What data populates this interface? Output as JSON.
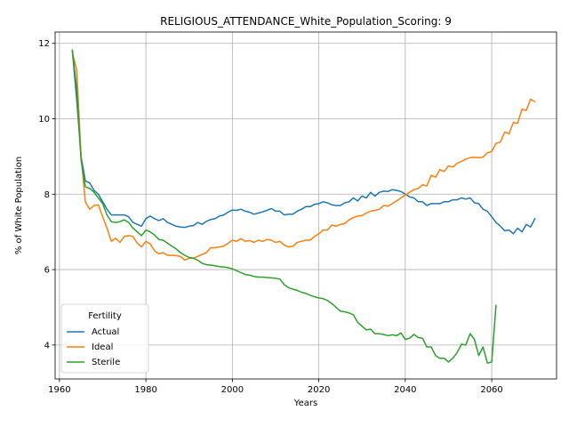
{
  "chart_data": {
    "type": "line",
    "title": "RELIGIOUS_ATTENDANCE_White_Population_Scoring: 9",
    "xlabel": "Years",
    "ylabel": "% of White Population",
    "xlim": [
      1959,
      2075
    ],
    "ylim": [
      3.1,
      12.3
    ],
    "xticks": [
      1960,
      1980,
      2000,
      2020,
      2040,
      2060
    ],
    "yticks": [
      4,
      6,
      8,
      10,
      12
    ],
    "grid": true,
    "legend": {
      "title": "Fertility",
      "position": "lower-left"
    },
    "series": [
      {
        "name": "Actual",
        "color": "#1f77b4",
        "points": [
          [
            1963,
            11.8
          ],
          [
            1964,
            10.5
          ],
          [
            1965,
            9.0
          ],
          [
            1966,
            8.35
          ],
          [
            1967,
            8.3
          ],
          [
            1968,
            8.1
          ],
          [
            1969,
            8.0
          ],
          [
            1970,
            7.8
          ],
          [
            1971,
            7.6
          ],
          [
            1972,
            7.45
          ],
          [
            1973,
            7.45
          ],
          [
            1974,
            7.45
          ],
          [
            1975,
            7.45
          ],
          [
            1976,
            7.4
          ],
          [
            1977,
            7.25
          ],
          [
            1978,
            7.2
          ],
          [
            1979,
            7.15
          ],
          [
            1980,
            7.35
          ],
          [
            1981,
            7.42
          ],
          [
            1982,
            7.35
          ],
          [
            1983,
            7.3
          ],
          [
            1984,
            7.35
          ],
          [
            1985,
            7.25
          ],
          [
            1986,
            7.2
          ],
          [
            1987,
            7.15
          ],
          [
            1988,
            7.13
          ],
          [
            1989,
            7.12
          ],
          [
            1990,
            7.15
          ],
          [
            1991,
            7.17
          ],
          [
            1992,
            7.25
          ],
          [
            1993,
            7.2
          ],
          [
            1994,
            7.28
          ],
          [
            1995,
            7.33
          ],
          [
            1996,
            7.35
          ],
          [
            1997,
            7.42
          ],
          [
            1998,
            7.45
          ],
          [
            1999,
            7.52
          ],
          [
            2000,
            7.58
          ],
          [
            2001,
            7.57
          ],
          [
            2002,
            7.6
          ],
          [
            2003,
            7.55
          ],
          [
            2004,
            7.52
          ],
          [
            2005,
            7.47
          ],
          [
            2006,
            7.5
          ],
          [
            2007,
            7.53
          ],
          [
            2008,
            7.57
          ],
          [
            2009,
            7.62
          ],
          [
            2010,
            7.55
          ],
          [
            2011,
            7.55
          ],
          [
            2012,
            7.45
          ],
          [
            2013,
            7.47
          ],
          [
            2014,
            7.47
          ],
          [
            2015,
            7.55
          ],
          [
            2016,
            7.6
          ],
          [
            2017,
            7.67
          ],
          [
            2018,
            7.67
          ],
          [
            2019,
            7.73
          ],
          [
            2020,
            7.75
          ],
          [
            2021,
            7.8
          ],
          [
            2022,
            7.77
          ],
          [
            2023,
            7.72
          ],
          [
            2024,
            7.7
          ],
          [
            2025,
            7.7
          ],
          [
            2026,
            7.77
          ],
          [
            2027,
            7.8
          ],
          [
            2028,
            7.9
          ],
          [
            2029,
            7.82
          ],
          [
            2030,
            7.95
          ],
          [
            2031,
            7.9
          ],
          [
            2032,
            8.05
          ],
          [
            2033,
            7.95
          ],
          [
            2034,
            8.05
          ],
          [
            2035,
            8.08
          ],
          [
            2036,
            8.07
          ],
          [
            2037,
            8.12
          ],
          [
            2038,
            8.1
          ],
          [
            2039,
            8.07
          ],
          [
            2040,
            8.0
          ],
          [
            2041,
            7.93
          ],
          [
            2042,
            7.9
          ],
          [
            2043,
            7.8
          ],
          [
            2044,
            7.8
          ],
          [
            2045,
            7.7
          ],
          [
            2046,
            7.75
          ],
          [
            2047,
            7.75
          ],
          [
            2048,
            7.75
          ],
          [
            2049,
            7.8
          ],
          [
            2050,
            7.8
          ],
          [
            2051,
            7.85
          ],
          [
            2052,
            7.85
          ],
          [
            2053,
            7.9
          ],
          [
            2054,
            7.87
          ],
          [
            2055,
            7.9
          ],
          [
            2056,
            7.77
          ],
          [
            2057,
            7.75
          ],
          [
            2058,
            7.6
          ],
          [
            2059,
            7.55
          ],
          [
            2060,
            7.4
          ],
          [
            2061,
            7.25
          ],
          [
            2062,
            7.15
          ],
          [
            2063,
            7.03
          ],
          [
            2064,
            7.05
          ],
          [
            2065,
            6.95
          ],
          [
            2066,
            7.1
          ],
          [
            2067,
            7.0
          ],
          [
            2068,
            7.2
          ],
          [
            2069,
            7.13
          ],
          [
            2070,
            7.35
          ]
        ]
      },
      {
        "name": "Ideal",
        "color": "#ff7f0e",
        "points": [
          [
            1963,
            11.75
          ],
          [
            1964,
            11.3
          ],
          [
            1965,
            9.0
          ],
          [
            1966,
            7.8
          ],
          [
            1967,
            7.6
          ],
          [
            1968,
            7.7
          ],
          [
            1969,
            7.72
          ],
          [
            1970,
            7.4
          ],
          [
            1971,
            7.1
          ],
          [
            1972,
            6.75
          ],
          [
            1973,
            6.83
          ],
          [
            1974,
            6.72
          ],
          [
            1975,
            6.88
          ],
          [
            1976,
            6.9
          ],
          [
            1977,
            6.88
          ],
          [
            1978,
            6.7
          ],
          [
            1979,
            6.6
          ],
          [
            1980,
            6.75
          ],
          [
            1981,
            6.68
          ],
          [
            1982,
            6.5
          ],
          [
            1983,
            6.42
          ],
          [
            1984,
            6.45
          ],
          [
            1985,
            6.38
          ],
          [
            1986,
            6.38
          ],
          [
            1987,
            6.37
          ],
          [
            1988,
            6.35
          ],
          [
            1989,
            6.25
          ],
          [
            1990,
            6.3
          ],
          [
            1991,
            6.3
          ],
          [
            1992,
            6.35
          ],
          [
            1993,
            6.4
          ],
          [
            1994,
            6.45
          ],
          [
            1995,
            6.58
          ],
          [
            1996,
            6.58
          ],
          [
            1997,
            6.6
          ],
          [
            1998,
            6.62
          ],
          [
            1999,
            6.7
          ],
          [
            2000,
            6.78
          ],
          [
            2001,
            6.75
          ],
          [
            2002,
            6.82
          ],
          [
            2003,
            6.75
          ],
          [
            2004,
            6.77
          ],
          [
            2005,
            6.72
          ],
          [
            2006,
            6.78
          ],
          [
            2007,
            6.75
          ],
          [
            2008,
            6.8
          ],
          [
            2009,
            6.78
          ],
          [
            2010,
            6.72
          ],
          [
            2011,
            6.75
          ],
          [
            2012,
            6.65
          ],
          [
            2013,
            6.6
          ],
          [
            2014,
            6.62
          ],
          [
            2015,
            6.72
          ],
          [
            2016,
            6.75
          ],
          [
            2017,
            6.78
          ],
          [
            2018,
            6.78
          ],
          [
            2019,
            6.88
          ],
          [
            2020,
            6.95
          ],
          [
            2021,
            7.05
          ],
          [
            2022,
            7.05
          ],
          [
            2023,
            7.18
          ],
          [
            2024,
            7.15
          ],
          [
            2025,
            7.2
          ],
          [
            2026,
            7.22
          ],
          [
            2027,
            7.32
          ],
          [
            2028,
            7.38
          ],
          [
            2029,
            7.42
          ],
          [
            2030,
            7.43
          ],
          [
            2031,
            7.5
          ],
          [
            2032,
            7.55
          ],
          [
            2033,
            7.57
          ],
          [
            2034,
            7.6
          ],
          [
            2035,
            7.7
          ],
          [
            2036,
            7.68
          ],
          [
            2037,
            7.75
          ],
          [
            2038,
            7.82
          ],
          [
            2039,
            7.9
          ],
          [
            2040,
            7.98
          ],
          [
            2041,
            8.05
          ],
          [
            2042,
            8.12
          ],
          [
            2043,
            8.15
          ],
          [
            2044,
            8.25
          ],
          [
            2045,
            8.22
          ],
          [
            2046,
            8.5
          ],
          [
            2047,
            8.45
          ],
          [
            2048,
            8.65
          ],
          [
            2049,
            8.6
          ],
          [
            2050,
            8.75
          ],
          [
            2051,
            8.72
          ],
          [
            2052,
            8.82
          ],
          [
            2053,
            8.87
          ],
          [
            2054,
            8.93
          ],
          [
            2055,
            8.97
          ],
          [
            2056,
            8.98
          ],
          [
            2057,
            8.97
          ],
          [
            2058,
            8.98
          ],
          [
            2059,
            9.1
          ],
          [
            2060,
            9.13
          ],
          [
            2061,
            9.35
          ],
          [
            2062,
            9.38
          ],
          [
            2063,
            9.65
          ],
          [
            2064,
            9.6
          ],
          [
            2065,
            9.9
          ],
          [
            2066,
            9.88
          ],
          [
            2067,
            10.25
          ],
          [
            2068,
            10.22
          ],
          [
            2069,
            10.52
          ],
          [
            2070,
            10.45
          ]
        ]
      },
      {
        "name": "Sterile",
        "color": "#2ca02c",
        "points": [
          [
            1963,
            11.82
          ],
          [
            1964,
            10.8
          ],
          [
            1965,
            8.9
          ],
          [
            1966,
            8.2
          ],
          [
            1967,
            8.15
          ],
          [
            1968,
            8.05
          ],
          [
            1969,
            7.9
          ],
          [
            1970,
            7.75
          ],
          [
            1971,
            7.45
          ],
          [
            1972,
            7.27
          ],
          [
            1973,
            7.25
          ],
          [
            1974,
            7.27
          ],
          [
            1975,
            7.32
          ],
          [
            1976,
            7.25
          ],
          [
            1977,
            7.1
          ],
          [
            1978,
            7.0
          ],
          [
            1979,
            6.9
          ],
          [
            1980,
            7.05
          ],
          [
            1981,
            7.0
          ],
          [
            1982,
            6.92
          ],
          [
            1983,
            6.8
          ],
          [
            1984,
            6.78
          ],
          [
            1985,
            6.7
          ],
          [
            1986,
            6.62
          ],
          [
            1987,
            6.55
          ],
          [
            1988,
            6.45
          ],
          [
            1989,
            6.38
          ],
          [
            1990,
            6.32
          ],
          [
            1991,
            6.3
          ],
          [
            1992,
            6.25
          ],
          [
            1993,
            6.17
          ],
          [
            1994,
            6.13
          ],
          [
            1995,
            6.12
          ],
          [
            1996,
            6.1
          ],
          [
            1997,
            6.08
          ],
          [
            1998,
            6.07
          ],
          [
            1999,
            6.05
          ],
          [
            2000,
            6.02
          ],
          [
            2001,
            5.97
          ],
          [
            2002,
            5.92
          ],
          [
            2003,
            5.87
          ],
          [
            2004,
            5.85
          ],
          [
            2005,
            5.82
          ],
          [
            2006,
            5.8
          ],
          [
            2007,
            5.8
          ],
          [
            2008,
            5.79
          ],
          [
            2009,
            5.78
          ],
          [
            2010,
            5.77
          ],
          [
            2011,
            5.75
          ],
          [
            2012,
            5.6
          ],
          [
            2013,
            5.52
          ],
          [
            2014,
            5.48
          ],
          [
            2015,
            5.45
          ],
          [
            2016,
            5.4
          ],
          [
            2017,
            5.37
          ],
          [
            2018,
            5.32
          ],
          [
            2019,
            5.28
          ],
          [
            2020,
            5.25
          ],
          [
            2021,
            5.23
          ],
          [
            2022,
            5.18
          ],
          [
            2023,
            5.1
          ],
          [
            2024,
            5.0
          ],
          [
            2025,
            4.9
          ],
          [
            2026,
            4.88
          ],
          [
            2027,
            4.85
          ],
          [
            2028,
            4.8
          ],
          [
            2029,
            4.6
          ],
          [
            2030,
            4.5
          ],
          [
            2031,
            4.4
          ],
          [
            2032,
            4.42
          ],
          [
            2033,
            4.3
          ],
          [
            2034,
            4.3
          ],
          [
            2035,
            4.28
          ],
          [
            2036,
            4.25
          ],
          [
            2037,
            4.27
          ],
          [
            2038,
            4.25
          ],
          [
            2039,
            4.32
          ],
          [
            2040,
            4.15
          ],
          [
            2041,
            4.18
          ],
          [
            2042,
            4.28
          ],
          [
            2043,
            4.2
          ],
          [
            2044,
            4.18
          ],
          [
            2045,
            3.95
          ],
          [
            2046,
            3.95
          ],
          [
            2047,
            3.72
          ],
          [
            2048,
            3.65
          ],
          [
            2049,
            3.65
          ],
          [
            2050,
            3.55
          ],
          [
            2051,
            3.65
          ],
          [
            2052,
            3.8
          ],
          [
            2053,
            4.02
          ],
          [
            2054,
            4.0
          ],
          [
            2055,
            4.3
          ],
          [
            2056,
            4.15
          ],
          [
            2057,
            3.72
          ],
          [
            2058,
            3.95
          ],
          [
            2059,
            3.52
          ],
          [
            2060,
            3.55
          ],
          [
            2061,
            5.05
          ]
        ]
      }
    ]
  }
}
